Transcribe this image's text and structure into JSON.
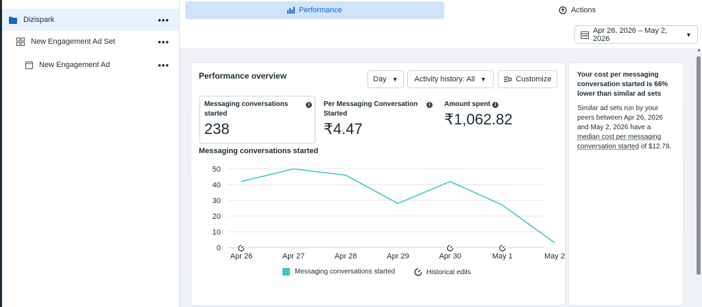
{
  "tree": {
    "items": [
      {
        "label": "Dizispark",
        "icon": "folder-icon"
      },
      {
        "label": "New Engagement Ad Set",
        "icon": "grid-icon"
      },
      {
        "label": "New Engagement Ad",
        "icon": "ad-icon"
      }
    ],
    "more": "•••"
  },
  "tabs": {
    "performance": "Performance",
    "actions": "Actions"
  },
  "date_range": "Apr 26, 2026 – May 2, 2026",
  "overview": {
    "title": "Performance overview",
    "day_label": "Day",
    "activity_label": "Activity history: All",
    "customize_label": "Customize",
    "metrics": [
      {
        "label": "Messaging conversations started",
        "value": "238"
      },
      {
        "label": "Per Messaging Conversation Started",
        "value": "₹4.47"
      },
      {
        "label": "Amount spent",
        "value": "₹1,062.82"
      }
    ],
    "chart_title": "Messaging conversations started",
    "legend_series": "Messaging conversations started",
    "legend_edits": "Historical edits"
  },
  "chart_data": {
    "type": "line",
    "categories": [
      "Apr 26",
      "Apr 27",
      "Apr 28",
      "Apr 29",
      "Apr 30",
      "May 1",
      "May 2"
    ],
    "series": [
      {
        "name": "Messaging conversations started",
        "values": [
          42,
          50,
          46,
          28,
          42,
          27,
          3
        ],
        "color": "#3ec7cc"
      }
    ],
    "historical_edits_at": [
      "Apr 26",
      "Apr 30",
      "May 1"
    ],
    "yticks": [
      0,
      10,
      20,
      30,
      40,
      50
    ],
    "ylim": [
      0,
      50
    ],
    "grid": true,
    "legend": "bottom"
  },
  "insight": {
    "headline": "Your cost per messaging conversation started is 66% lower than similar ad sets",
    "body_start": "Similar ad sets run by your peers between Apr 26, 2026 and May 2, 2026 have a ",
    "body_link": "median cost per messaging conversation started",
    "body_end": " of $12.78."
  }
}
